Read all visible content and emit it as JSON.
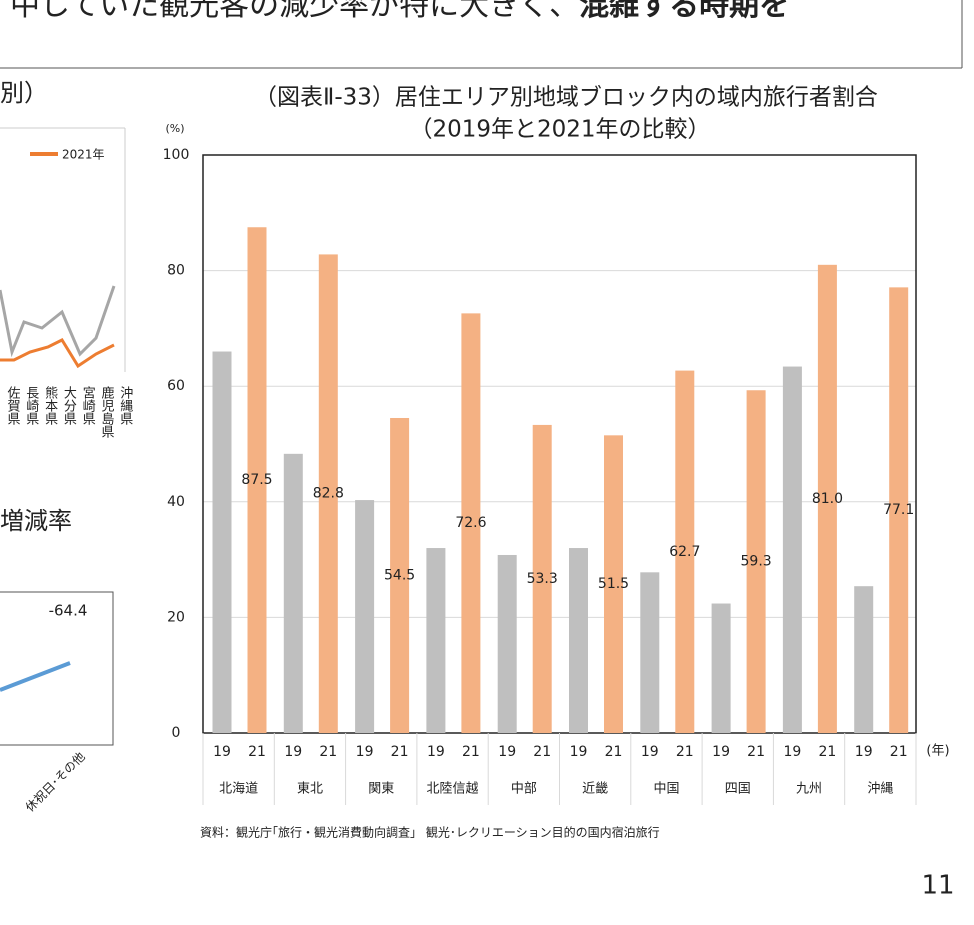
{
  "header": {
    "text": "中していた観光客の減少率が特に大きく、",
    "bold": "混雑する時期を"
  },
  "left_top": {
    "title_fragment": "別）",
    "legend": "2021年",
    "categories": [
      "佐賀県",
      "長崎県",
      "熊本県",
      "大分県",
      "宮崎県",
      "鹿児島県",
      "沖縄県"
    ]
  },
  "left_bottom": {
    "title_fragment": "増減率",
    "label": "-64.4",
    "category": "休祝日･その他"
  },
  "chart_data": {
    "type": "bar",
    "title": "（図表Ⅱ-33）居住エリア別地域ブロック内の域内旅行者割合",
    "subtitle": "（2019年と2021年の比較）",
    "y_unit": "(%)",
    "x_unit": "(年)",
    "categories": [
      "北海道",
      "東北",
      "関東",
      "北陸信越",
      "中部",
      "近畿",
      "中国",
      "四国",
      "九州",
      "沖縄"
    ],
    "series": [
      {
        "name": "19",
        "color": "#bfbfbf",
        "values": [
          66,
          48.3,
          40.3,
          32,
          30.8,
          32,
          27.8,
          22.4,
          63.4,
          25.4
        ]
      },
      {
        "name": "21",
        "color": "#f4b183",
        "values": [
          87.5,
          82.8,
          54.5,
          72.6,
          53.3,
          51.5,
          62.7,
          59.3,
          81,
          77.1
        ],
        "value_labels": [
          "87.5",
          "82.8",
          "54.5",
          "72.6",
          "53.3",
          "51.5",
          "62.7",
          "59.3",
          "81.0",
          "77.1"
        ]
      }
    ],
    "ylim": [
      0,
      100
    ],
    "yticks": [
      0,
      20,
      40,
      60,
      80,
      100
    ],
    "grid": true
  },
  "source": "資料：観光庁｢旅行・観光消費動向調査」 観光･レクリエーション目的の国内宿泊旅行",
  "page_number": "11"
}
